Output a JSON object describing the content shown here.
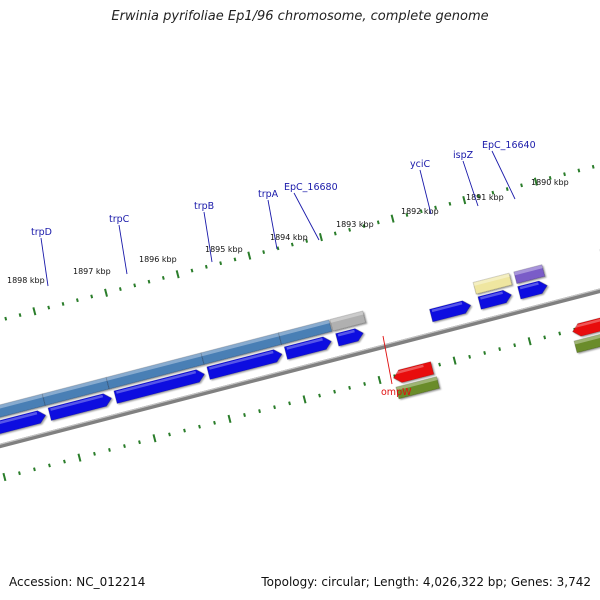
{
  "title": "Erwinia pyrifoliae Ep1/96 chromosome, complete genome",
  "footer": {
    "accession": "Accession: NC_012214",
    "summary": "Topology: circular; Length: 4,026,322 bp; Genes: 3,742"
  },
  "colors": {
    "cds_forward": "#1010e0",
    "cds_reverse": "#e81010",
    "gene_steel": "#4a7fb5",
    "gene_gray": "#b0b0b0",
    "gene_khaki": "#efe6a0",
    "gene_purple": "#7a5cc8",
    "gene_olive": "#6b8c2a",
    "ruler": "#2a7d2a",
    "backbone": "#808080",
    "forward_label": "#1a1aaa",
    "reverse_label": "#e01010"
  },
  "ruler_labels": [
    "1898 kbp",
    "1897 kbp",
    "1896 kbp",
    "1895 kbp",
    "1894 kbp",
    "1893 kbp",
    "1892 kbp",
    "1891 kbp",
    "1890 kbp"
  ],
  "gene_labels": {
    "forward": [
      "trpD",
      "trpC",
      "trpB",
      "trpA",
      "EpC_16680",
      "yciC",
      "ispZ",
      "EpC_16640"
    ],
    "reverse": [
      "ompW"
    ]
  }
}
